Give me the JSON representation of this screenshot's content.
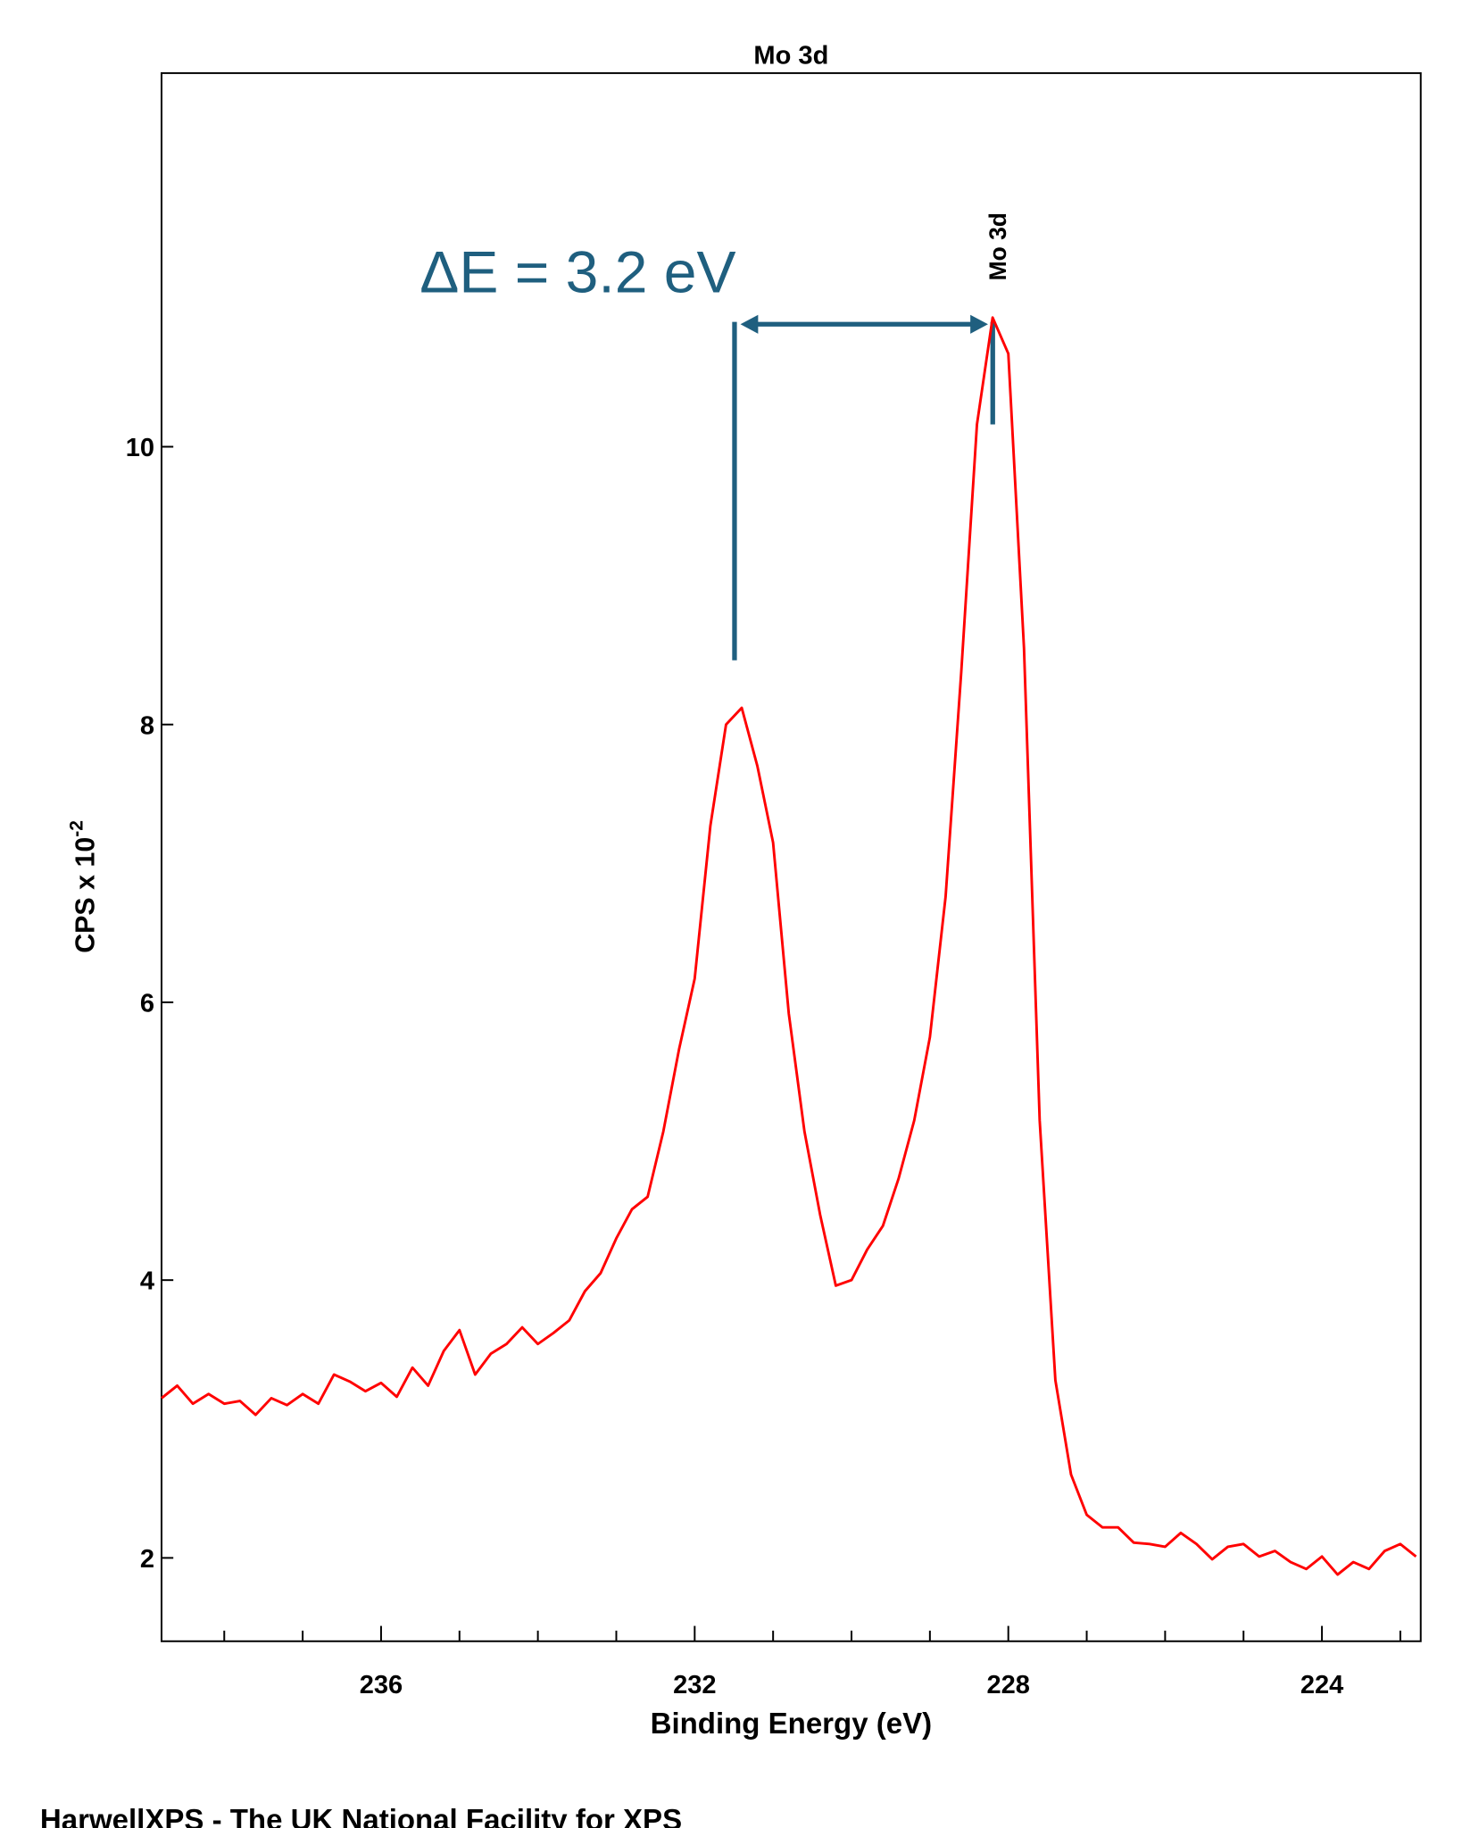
{
  "chart_data": {
    "type": "line",
    "title": "Mo 3d",
    "xlabel": "Binding Energy (eV)",
    "ylabel": "CPS x 10",
    "ylabel_exponent": "-2",
    "footer": "HarwellXPS - The UK National Facility for XPS",
    "annotation": "ΔE = 3.2 eV",
    "peak_label": {
      "text": "Mo 3d",
      "x": 228.0
    },
    "xlim": [
      238.8,
      222.74
    ],
    "ylim": [
      1.4,
      12.69
    ],
    "xticks": [
      236,
      232,
      228,
      224
    ],
    "xticks_minor": [
      238,
      237,
      235,
      234,
      233,
      231,
      230,
      229,
      227,
      226,
      225,
      223
    ],
    "yticks": [
      2,
      4,
      6,
      8,
      10
    ],
    "x": [
      238.8,
      238.6,
      238.4,
      238.2,
      238.0,
      237.8,
      237.6,
      237.4,
      237.2,
      237.0,
      236.8,
      236.6,
      236.4,
      236.2,
      236.0,
      235.8,
      235.6,
      235.4,
      235.2,
      235.0,
      234.8,
      234.6,
      234.4,
      234.2,
      234.0,
      233.8,
      233.6,
      233.4,
      233.2,
      233.0,
      232.8,
      232.6,
      232.4,
      232.2,
      232.0,
      231.8,
      231.6,
      231.4,
      231.2,
      231.0,
      230.8,
      230.6,
      230.4,
      230.2,
      230.0,
      229.8,
      229.6,
      229.4,
      229.2,
      229.0,
      228.8,
      228.6,
      228.4,
      228.2,
      228.0,
      227.8,
      227.6,
      227.4,
      227.2,
      227.0,
      226.8,
      226.6,
      226.4,
      226.2,
      226.0,
      225.8,
      225.6,
      225.4,
      225.2,
      225.0,
      224.8,
      224.6,
      224.4,
      224.2,
      224.0,
      223.8,
      223.6,
      223.4,
      223.2,
      223.0,
      222.8
    ],
    "series": [
      {
        "name": "Mo 3d",
        "color": "#ff0000",
        "values": [
          3.15,
          3.24,
          3.11,
          3.18,
          3.11,
          3.13,
          3.03,
          3.15,
          3.1,
          3.18,
          3.11,
          3.32,
          3.27,
          3.2,
          3.26,
          3.16,
          3.37,
          3.24,
          3.49,
          3.64,
          3.32,
          3.47,
          3.54,
          3.66,
          3.54,
          3.62,
          3.71,
          3.92,
          4.05,
          4.3,
          4.51,
          4.6,
          5.07,
          5.66,
          6.17,
          7.27,
          8.0,
          8.12,
          7.7,
          7.15,
          5.92,
          5.07,
          4.47,
          3.96,
          4.0,
          4.22,
          4.39,
          4.73,
          5.15,
          5.75,
          6.76,
          8.38,
          10.16,
          10.93,
          10.67,
          8.55,
          5.15,
          3.28,
          2.6,
          2.31,
          2.22,
          2.22,
          2.11,
          2.1,
          2.08,
          2.18,
          2.1,
          1.99,
          2.08,
          2.1,
          2.01,
          2.05,
          1.97,
          1.92,
          2.01,
          1.88,
          1.97,
          1.92,
          2.05,
          2.1,
          2.01
        ]
      }
    ]
  }
}
